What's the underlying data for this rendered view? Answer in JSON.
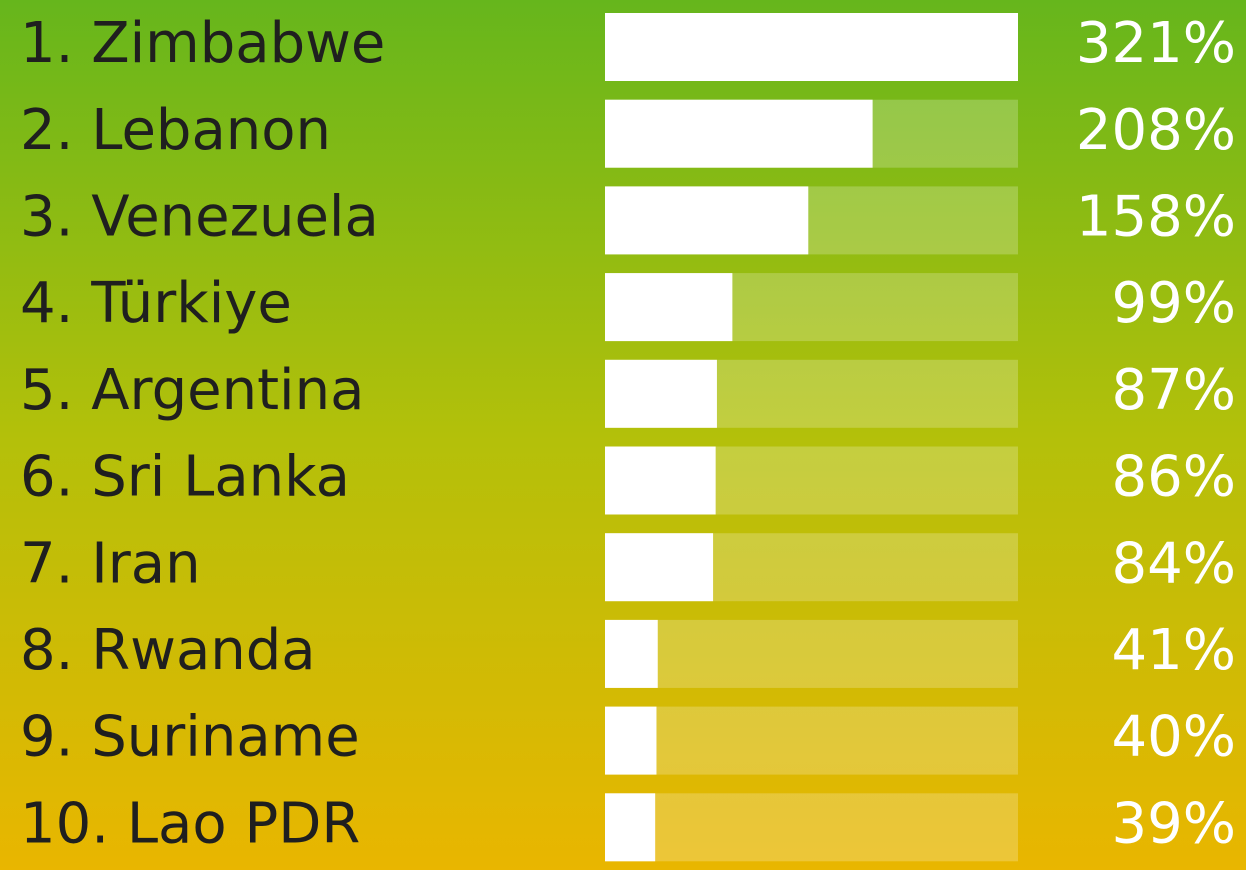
{
  "chart_data": {
    "type": "bar",
    "orientation": "horizontal",
    "categories": [
      "1. Zimbabwe",
      "2. Lebanon",
      "3. Venezuela",
      "4. Türkiye",
      "5. Argentina",
      "6. Sri Lanka",
      "7. Iran",
      "8. Rwanda",
      "9. Suriname",
      "10. Lao PDR"
    ],
    "values": [
      321,
      208,
      158,
      99,
      87,
      86,
      84,
      41,
      40,
      39
    ],
    "value_labels": [
      "321%",
      "208%",
      "158%",
      "99%",
      "87%",
      "86%",
      "84%",
      "41%",
      "40%",
      "39%"
    ],
    "color": "#ffffff",
    "xlim": [
      0,
      321
    ]
  }
}
